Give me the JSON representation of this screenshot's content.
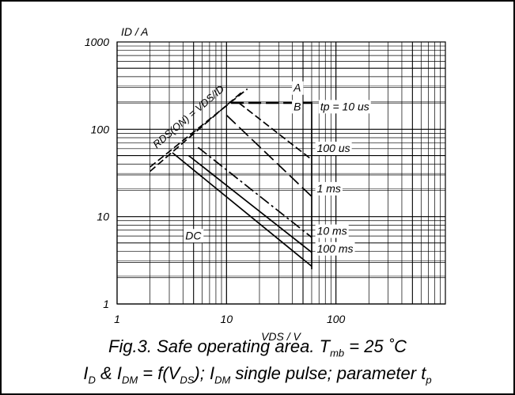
{
  "chart_data": {
    "type": "line",
    "x_scale": "log",
    "y_scale": "log",
    "xlim": [
      1,
      1000
    ],
    "ylim": [
      1,
      1000
    ],
    "xlabel": "VDS / V",
    "ylabel": "ID / A",
    "x_ticks": [
      "1",
      "10",
      "100"
    ],
    "x_tick_values": [
      1,
      10,
      100
    ],
    "y_ticks": [
      "1",
      "10",
      "100",
      "1000"
    ],
    "y_tick_values": [
      1,
      10,
      100,
      1000
    ],
    "grid": true,
    "series": [
      {
        "style": "long-dash",
        "points": [
          [
            11,
            200
          ],
          [
            55,
            200
          ],
          [
            60,
            200
          ]
        ]
      },
      {
        "style": "dash",
        "points": [
          [
            13,
            200
          ],
          [
            60,
            45
          ]
        ]
      },
      {
        "style": "long-dash",
        "points": [
          [
            10,
            145
          ],
          [
            60,
            17
          ]
        ]
      },
      {
        "style": "dash-dot",
        "points": [
          [
            5.5,
            62
          ],
          [
            60,
            5.8
          ]
        ]
      },
      {
        "style": "solid",
        "points": [
          [
            4.5,
            50
          ],
          [
            60,
            3.9
          ]
        ]
      },
      {
        "style": "solid",
        "points": [
          [
            3.2,
            54
          ],
          [
            60,
            2.7
          ]
        ]
      },
      {
        "style": "solid",
        "points": [
          [
            60,
            205
          ],
          [
            60,
            2.5
          ]
        ]
      },
      {
        "style": "dash",
        "points": [
          [
            2,
            33
          ],
          [
            14,
            270
          ]
        ]
      },
      {
        "style": "dash",
        "points": [
          [
            2,
            37
          ],
          [
            15.5,
            290
          ]
        ]
      }
    ],
    "annotations": [
      {
        "text": "A",
        "x": 41,
        "y": 270
      },
      {
        "text": "B",
        "x": 41,
        "y": 165
      },
      {
        "text": "tp = 10 us",
        "x": 72,
        "y": 165
      },
      {
        "text": "100 us",
        "x": 67,
        "y": 55
      },
      {
        "text": "1 ms",
        "x": 67,
        "y": 19
      },
      {
        "text": "10 ms",
        "x": 67,
        "y": 6.2
      },
      {
        "text": "100 ms",
        "x": 67,
        "y": 3.9
      },
      {
        "text": "DC",
        "x": 4.2,
        "y": 5.5
      },
      {
        "text": "RDS(ON) = VDS/ID",
        "x": 2.3,
        "y": 60
      }
    ]
  },
  "caption": {
    "line1_a": "Fig.3.   Safe operating area. T",
    "line1_sub": "mb",
    "line1_b": " = 25 ˚C",
    "line2_a": "I",
    "line2_sub1": "D",
    "line2_b": " & I",
    "line2_sub2": "DM",
    "line2_c": " = f(V",
    "line2_sub3": "DS",
    "line2_d": "); I",
    "line2_sub4": "DM",
    "line2_e": " single pulse; parameter t",
    "line2_sub5": "p"
  }
}
